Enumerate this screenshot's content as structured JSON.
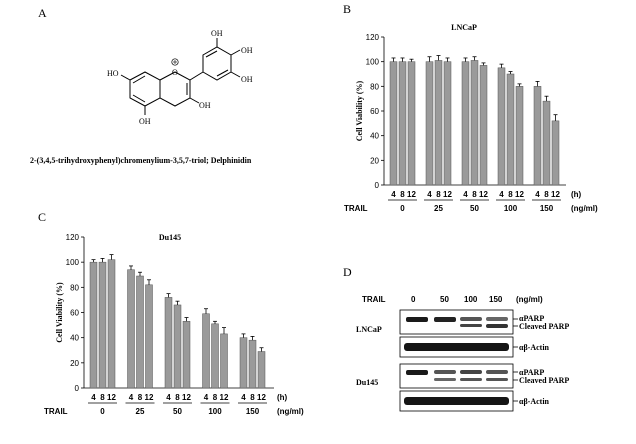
{
  "panels": {
    "A": {
      "letter": "A",
      "caption": "2-(3,4,5-trihydroxyphenyl)chromenylium-3,5,7-triol; Delphinidin",
      "structure_labels": {
        "oh": "OH",
        "ho": "HO",
        "o_plus": "O"
      }
    },
    "B": {
      "letter": "B"
    },
    "C": {
      "letter": "C"
    },
    "D": {
      "letter": "D",
      "header_label": "TRAIL",
      "doses": [
        "0",
        "50",
        "100",
        "150"
      ],
      "unit": "(ng/ml)",
      "cell_lines": [
        "LNCaP",
        "Du145"
      ],
      "band_labels": [
        "αPARP",
        "Cleaved PARP",
        "αβ-Actin"
      ]
    }
  },
  "chart_data": [
    {
      "type": "bar",
      "title": "LNCaP",
      "ylabel": "Cell Viability (%)",
      "ylim": [
        0,
        120
      ],
      "yticks": [
        0,
        20,
        40,
        60,
        80,
        100,
        120
      ],
      "hours_label": "(h)",
      "hours": [
        "4",
        "8",
        "12"
      ],
      "treatment_label": "TRAIL",
      "dose_unit": "(ng/ml)",
      "categories": [
        "0",
        "25",
        "50",
        "100",
        "150"
      ],
      "values": [
        [
          100,
          100,
          100
        ],
        [
          100,
          101,
          100
        ],
        [
          100,
          101,
          97
        ],
        [
          95,
          90,
          80
        ],
        [
          80,
          68,
          52
        ]
      ],
      "errors": [
        [
          3,
          3,
          2
        ],
        [
          4,
          4,
          3
        ],
        [
          3,
          3,
          2
        ],
        [
          3,
          2,
          2
        ],
        [
          4,
          4,
          5
        ]
      ],
      "bar_color": "#9a9a9a"
    },
    {
      "type": "bar",
      "title": "Du145",
      "ylabel": "Cell Viability (%)",
      "ylim": [
        0,
        120
      ],
      "yticks": [
        0,
        20,
        40,
        60,
        80,
        100,
        120
      ],
      "hours_label": "(h)",
      "hours": [
        "4",
        "8",
        "12"
      ],
      "treatment_label": "TRAIL",
      "dose_unit": "(ng/ml)",
      "categories": [
        "0",
        "25",
        "50",
        "100",
        "150"
      ],
      "values": [
        [
          100,
          100,
          102
        ],
        [
          94,
          89,
          82
        ],
        [
          72,
          66,
          53
        ],
        [
          59,
          51,
          43
        ],
        [
          40,
          38,
          29
        ]
      ],
      "errors": [
        [
          2,
          3,
          4
        ],
        [
          3,
          3,
          4
        ],
        [
          3,
          3,
          3
        ],
        [
          4,
          2,
          5
        ],
        [
          3,
          3,
          3
        ]
      ],
      "bar_color": "#9a9a9a"
    }
  ]
}
